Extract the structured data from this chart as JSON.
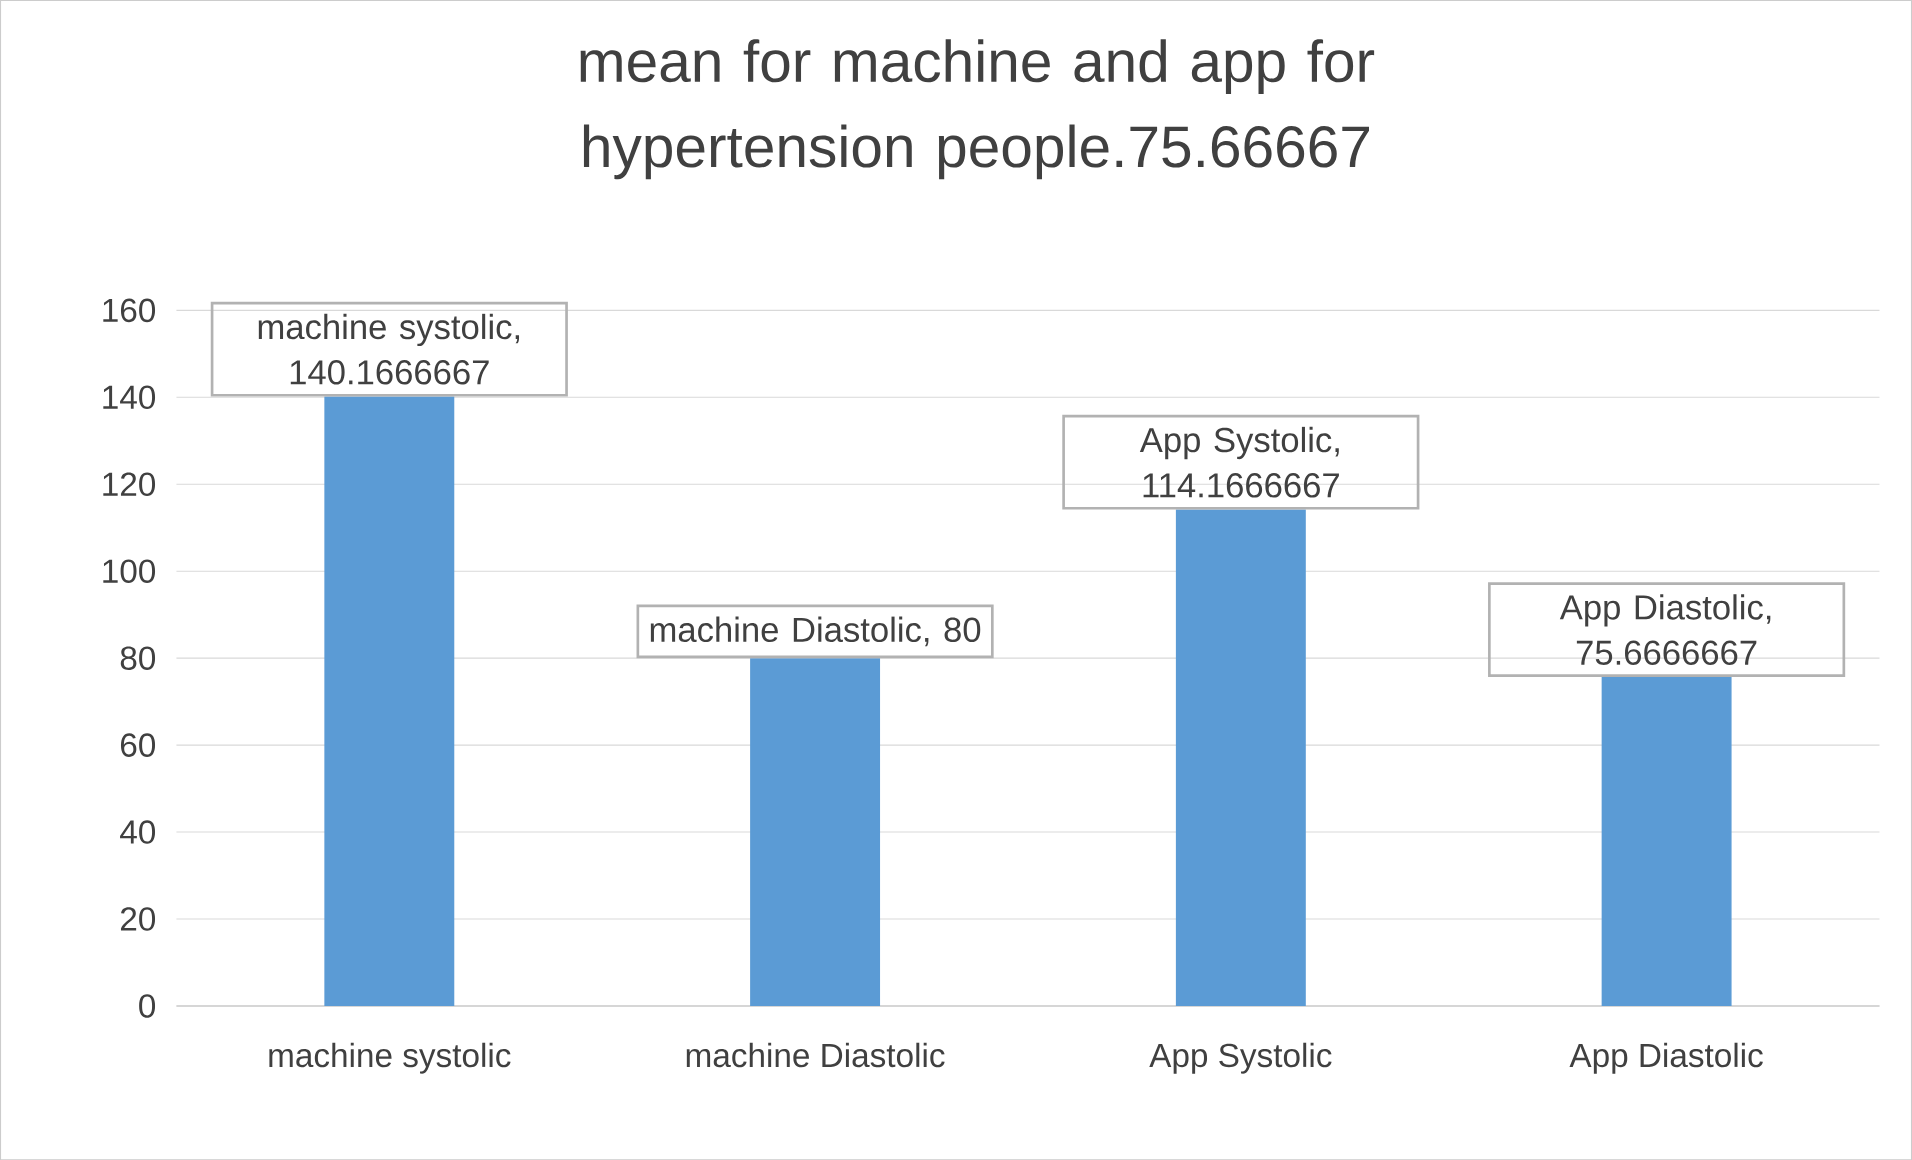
{
  "chart_data": {
    "type": "bar",
    "title": "mean for machine and app for hypertension people.75.66667",
    "categories": [
      "machine systolic",
      "machine Diastolic",
      "App Systolic",
      "App Diastolic"
    ],
    "values": [
      140.1666667,
      80,
      114.1666667,
      75.6666667
    ],
    "value_labels": [
      "machine systolic, 140.1666667",
      "machine Diastolic, 80",
      "App Systolic, 114.1666667",
      "App Diastolic, 75.6666667"
    ],
    "color": "#5b9bd5",
    "ylim": [
      0,
      160
    ],
    "yticks": [
      0,
      20,
      40,
      60,
      80,
      100,
      120,
      140,
      160
    ],
    "grid": "y"
  }
}
